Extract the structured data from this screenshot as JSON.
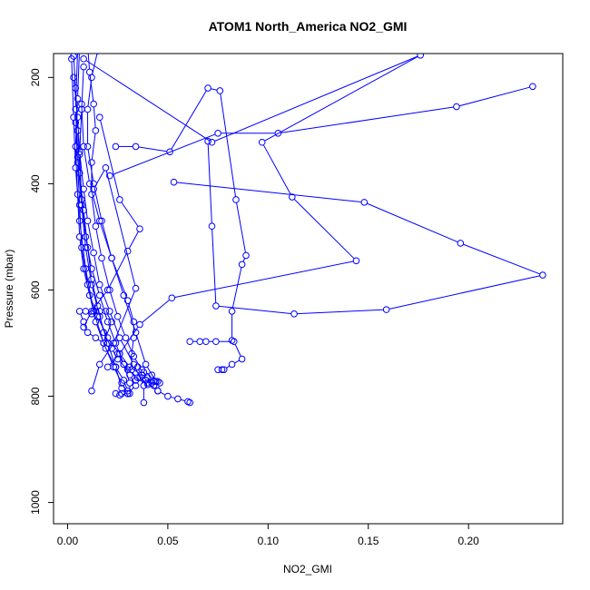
{
  "chart_data": {
    "type": "line",
    "title": "ATOM1 North_America NO2_GMI",
    "xlabel": "NO2_GMI",
    "ylabel": "Pressure (mbar)",
    "xlim": [
      -0.007,
      0.247
    ],
    "ylim": [
      1040,
      155
    ],
    "y_reversed": true,
    "x_ticks": [
      "0.00",
      "0.05",
      "0.10",
      "0.15",
      "0.20"
    ],
    "y_ticks": [
      "200",
      "400",
      "600",
      "800",
      "1000"
    ],
    "grid": false,
    "legend": "none",
    "color": "#0000ff",
    "marker": "open-circle",
    "series": [
      {
        "x": [
          0.004,
          0.003,
          0.004,
          0.005,
          0.006,
          0.008,
          0.01,
          0.012,
          0.015,
          0.018,
          0.022,
          0.025,
          0.03,
          0.035,
          0.04,
          0.045,
          0.05,
          0.055,
          0.06,
          0.061
        ],
        "y": [
          100,
          160,
          220,
          300,
          380,
          450,
          520,
          580,
          630,
          680,
          710,
          730,
          750,
          765,
          775,
          790,
          800,
          805,
          810,
          812
        ]
      },
      {
        "x": [
          0.006,
          0.005,
          0.004,
          0.005,
          0.006,
          0.008,
          0.011,
          0.015,
          0.02,
          0.026,
          0.031,
          0.037,
          0.043,
          0.045
        ],
        "y": [
          140,
          240,
          330,
          420,
          500,
          560,
          610,
          650,
          690,
          720,
          745,
          760,
          772,
          772
        ]
      },
      {
        "x": [
          0.008,
          0.007,
          0.006,
          0.007,
          0.009,
          0.012,
          0.016,
          0.02,
          0.024,
          0.028,
          0.031,
          0.031
        ],
        "y": [
          180,
          260,
          345,
          430,
          500,
          560,
          610,
          660,
          700,
          740,
          775,
          795
        ]
      },
      {
        "x": [
          0.002,
          0.003,
          0.004,
          0.006,
          0.009,
          0.013,
          0.018,
          0.023,
          0.027,
          0.03
        ],
        "y": [
          165,
          275,
          370,
          470,
          560,
          640,
          700,
          745,
          775,
          795
        ]
      },
      {
        "x": [
          0.01,
          0.011,
          0.013,
          0.014,
          0.012,
          0.012,
          0.014,
          0.017,
          0.021,
          0.025,
          0.029,
          0.033,
          0.037,
          0.04,
          0.042
        ],
        "y": [
          140,
          190,
          250,
          300,
          360,
          420,
          480,
          540,
          600,
          650,
          690,
          725,
          750,
          765,
          775
        ]
      },
      {
        "x": [
          0.003,
          0.005,
          0.006,
          0.008,
          0.01,
          0.013,
          0.016,
          0.021,
          0.026,
          0.033,
          0.038,
          0.038
        ],
        "y": [
          200,
          275,
          340,
          410,
          470,
          530,
          590,
          640,
          690,
          740,
          780,
          812
        ]
      },
      {
        "x": [
          0.005,
          0.004,
          0.005,
          0.007,
          0.009,
          0.012,
          0.016,
          0.02,
          0.024,
          0.027,
          0.027
        ],
        "y": [
          150,
          260,
          350,
          440,
          520,
          590,
          650,
          700,
          745,
          785,
          795
        ]
      },
      {
        "x": [
          0.015,
          0.012,
          0.01,
          0.01,
          0.013,
          0.017,
          0.022,
          0.028,
          0.034,
          0.039,
          0.044
        ],
        "y": [
          150,
          200,
          260,
          330,
          400,
          470,
          540,
          610,
          680,
          740,
          772
        ]
      },
      {
        "x": [
          0.007,
          0.008,
          0.011,
          0.016,
          0.022,
          0.03,
          0.033,
          0.033,
          0.032,
          0.032,
          0.034
        ],
        "y": [
          250,
          330,
          400,
          470,
          540,
          620,
          660,
          690,
          720,
          750,
          770
        ]
      },
      {
        "x": [
          0.004,
          0.005,
          0.006,
          0.007,
          0.01,
          0.014,
          0.019,
          0.024,
          0.028,
          0.03,
          0.03
        ],
        "y": [
          285,
          360,
          440,
          520,
          590,
          660,
          710,
          745,
          770,
          790,
          795
        ]
      },
      {
        "x": [
          0.024,
          0.034,
          0.051,
          0.07,
          0.076,
          0.084,
          0.089,
          0.087,
          0.082,
          0.082
        ],
        "y": [
          330,
          330,
          340,
          220,
          225,
          430,
          535,
          552,
          640,
          695
        ]
      },
      {
        "x": [
          0.021,
          0.075,
          0.105,
          0.194,
          0.232
        ],
        "y": [
          385,
          305,
          305,
          255,
          217
        ]
      },
      {
        "x": [
          0.008,
          0.072,
          0.176,
          0.097,
          0.112,
          0.144,
          0.052,
          0.036,
          0.026,
          0.02
        ],
        "y": [
          165,
          322,
          158,
          322,
          425,
          545,
          615,
          665,
          720,
          745
        ]
      },
      {
        "x": [
          0.053,
          0.148,
          0.196,
          0.237,
          0.159,
          0.113,
          0.074,
          0.072,
          0.07
        ],
        "y": [
          397,
          435,
          512,
          572,
          637,
          645,
          630,
          480,
          320
        ]
      },
      {
        "x": [
          0.016,
          0.026,
          0.036,
          0.03,
          0.02,
          0.012,
          0.008
        ],
        "y": [
          275,
          430,
          485,
          527,
          600,
          640,
          670
        ]
      },
      {
        "x": [
          0.013,
          0.019,
          0.034,
          0.023,
          0.016,
          0.012
        ],
        "y": [
          410,
          370,
          597,
          700,
          740,
          790
        ]
      },
      {
        "x": [
          0.061,
          0.066,
          0.069,
          0.074,
          0.083,
          0.087,
          0.082,
          0.078,
          0.077,
          0.075
        ],
        "y": [
          697,
          697,
          697,
          697,
          697,
          730,
          740,
          750,
          750,
          750
        ]
      },
      {
        "x": [
          0.035,
          0.038,
          0.042,
          0.046,
          0.045,
          0.043,
          0.039,
          0.036,
          0.04,
          0.044
        ],
        "y": [
          745,
          755,
          760,
          775,
          790,
          780,
          770,
          765,
          778,
          772
        ]
      },
      {
        "x": [
          0.025,
          0.028,
          0.031,
          0.034,
          0.03,
          0.026,
          0.024
        ],
        "y": [
          720,
          740,
          760,
          780,
          795,
          798,
          795
        ]
      },
      {
        "x": [
          0.009,
          0.012,
          0.016,
          0.019,
          0.022,
          0.018,
          0.014,
          0.01,
          0.008,
          0.006
        ],
        "y": [
          640,
          645,
          640,
          640,
          660,
          700,
          690,
          680,
          660,
          640
        ]
      }
    ]
  }
}
